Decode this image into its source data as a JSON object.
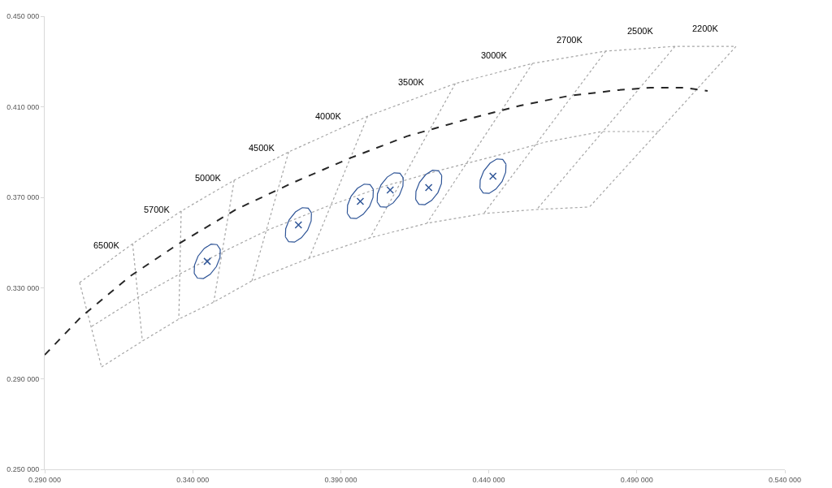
{
  "chart_data": {
    "type": "line",
    "xlim": [
      0.29,
      0.54
    ],
    "ylim": [
      0.25,
      0.45
    ],
    "xticks": [
      {
        "value": 0.29,
        "label": "0.290 000"
      },
      {
        "value": 0.34,
        "label": "0.340 000"
      },
      {
        "value": 0.39,
        "label": "0.390 000"
      },
      {
        "value": 0.44,
        "label": "0.440 000"
      },
      {
        "value": 0.49,
        "label": "0.490 000"
      },
      {
        "value": 0.54,
        "label": "0.540 000"
      }
    ],
    "yticks": [
      {
        "value": 0.25,
        "label": "0.250 000"
      },
      {
        "value": 0.29,
        "label": "0.290 000"
      },
      {
        "value": 0.33,
        "label": "0.330 000"
      },
      {
        "value": 0.37,
        "label": "0.370 000"
      },
      {
        "value": 0.41,
        "label": "0.410 000"
      },
      {
        "value": 0.45,
        "label": "0.450 000"
      }
    ],
    "series": [
      {
        "color": "#a6a6a6",
        "line_style": "dotted",
        "marker": "none",
        "x": [
          0.3018,
          0.3197,
          0.3361,
          0.354,
          0.3724,
          0.3991,
          0.4287,
          0.4548,
          0.4795,
          0.5029,
          0.5235
        ],
        "values": [
          0.3324,
          0.3496,
          0.364,
          0.3776,
          0.3901,
          0.4059,
          0.4203,
          0.4292,
          0.4346,
          0.4367,
          0.4367
        ]
      },
      {
        "color": "#a6a6a6",
        "line_style": "dotted",
        "marker": "none",
        "x": [
          0.3059,
          0.3216,
          0.3353,
          0.3491,
          0.3655,
          0.3848,
          0.404,
          0.4232,
          0.4425,
          0.4589,
          0.4782,
          0.4974
        ],
        "values": [
          0.3131,
          0.326,
          0.336,
          0.3453,
          0.3557,
          0.3658,
          0.3747,
          0.3819,
          0.3884,
          0.3944,
          0.3991,
          0.3991
        ]
      },
      {
        "color": "#a6a6a6",
        "line_style": "dotted",
        "marker": "none",
        "x": [
          0.3092,
          0.323,
          0.3353,
          0.3471,
          0.36,
          0.3793,
          0.3999,
          0.4191,
          0.4383,
          0.4562,
          0.474
        ],
        "values": [
          0.2952,
          0.3066,
          0.3163,
          0.3238,
          0.3332,
          0.3432,
          0.3522,
          0.3586,
          0.3629,
          0.3647,
          0.3658
        ]
      },
      {
        "color": "#a6a6a6",
        "line_style": "dotted",
        "marker": "none",
        "x": [
          0.3018,
          0.3092
        ],
        "values": [
          0.3324,
          0.2952
        ]
      },
      {
        "color": "#a6a6a6",
        "line_style": "dotted",
        "marker": "none",
        "x": [
          0.3197,
          0.323
        ],
        "values": [
          0.3496,
          0.3066
        ]
      },
      {
        "color": "#a6a6a6",
        "line_style": "dotted",
        "marker": "none",
        "x": [
          0.3361,
          0.3353
        ],
        "values": [
          0.364,
          0.3163
        ]
      },
      {
        "color": "#a6a6a6",
        "line_style": "dotted",
        "marker": "none",
        "x": [
          0.354,
          0.3471
        ],
        "values": [
          0.3776,
          0.3238
        ]
      },
      {
        "color": "#a6a6a6",
        "line_style": "dotted",
        "marker": "none",
        "x": [
          0.3724,
          0.36
        ],
        "values": [
          0.3901,
          0.3332
        ]
      },
      {
        "color": "#a6a6a6",
        "line_style": "dotted",
        "marker": "none",
        "x": [
          0.3991,
          0.3793
        ],
        "values": [
          0.4059,
          0.3432
        ]
      },
      {
        "color": "#a6a6a6",
        "line_style": "dotted",
        "marker": "none",
        "x": [
          0.4287,
          0.3999
        ],
        "values": [
          0.4203,
          0.3522
        ]
      },
      {
        "color": "#a6a6a6",
        "line_style": "dotted",
        "marker": "none",
        "x": [
          0.4548,
          0.4191
        ],
        "values": [
          0.4292,
          0.3586
        ]
      },
      {
        "color": "#a6a6a6",
        "line_style": "dotted",
        "marker": "none",
        "x": [
          0.4795,
          0.4383
        ],
        "values": [
          0.4346,
          0.3629
        ]
      },
      {
        "color": "#a6a6a6",
        "line_style": "dotted",
        "marker": "none",
        "x": [
          0.5029,
          0.4562
        ],
        "values": [
          0.4367,
          0.3647
        ]
      },
      {
        "color": "#a6a6a6",
        "line_style": "dotted",
        "marker": "none",
        "x": [
          0.5235,
          0.474
        ],
        "values": [
          0.4367,
          0.3658
        ]
      },
      {
        "color": "#262626",
        "line_style": "dashed",
        "marker": "none",
        "x": [
          0.29,
          0.3024,
          0.3189,
          0.3353,
          0.3546,
          0.3738,
          0.393,
          0.4123,
          0.4315,
          0.4507,
          0.4672,
          0.4837,
          0.4947,
          0.5057,
          0.5139
        ],
        "values": [
          0.3005,
          0.3174,
          0.3353,
          0.3496,
          0.3647,
          0.3765,
          0.3873,
          0.397,
          0.4041,
          0.4106,
          0.4149,
          0.4174,
          0.4185,
          0.4185,
          0.417
        ]
      },
      {
        "color": "#2f5597",
        "line_style": "solid",
        "marker": "none",
        "x": [
          0.3405,
          0.3406,
          0.3418,
          0.3439,
          0.3462,
          0.3482,
          0.3493
        ],
        "values": [
          0.3365,
          0.3401,
          0.3441,
          0.3475,
          0.3494,
          0.3492,
          0.3471
        ]
      },
      {
        "color": "#2f5597",
        "line_style": "solid",
        "marker": "none",
        "x": [
          0.3405,
          0.3416,
          0.3436,
          0.3459,
          0.348,
          0.3492,
          0.3493
        ],
        "values": [
          0.3365,
          0.3344,
          0.3342,
          0.3361,
          0.3395,
          0.3435,
          0.3471
        ]
      },
      {
        "color": "#2f5597",
        "line_style": "solid",
        "marker": "none",
        "x": [
          0.3713,
          0.3714,
          0.3726,
          0.3747,
          0.377,
          0.379,
          0.3801
        ],
        "values": [
          0.3526,
          0.3562,
          0.3602,
          0.3636,
          0.3655,
          0.3653,
          0.3632
        ]
      },
      {
        "color": "#2f5597",
        "line_style": "solid",
        "marker": "none",
        "x": [
          0.3713,
          0.3724,
          0.3744,
          0.3767,
          0.3788,
          0.38,
          0.3801
        ],
        "values": [
          0.3526,
          0.3505,
          0.3503,
          0.3522,
          0.3556,
          0.3596,
          0.3632
        ]
      },
      {
        "color": "#2f5597",
        "line_style": "solid",
        "marker": "none",
        "x": [
          0.3922,
          0.3923,
          0.3935,
          0.3956,
          0.3979,
          0.3999,
          0.401
        ],
        "values": [
          0.363,
          0.3666,
          0.3706,
          0.374,
          0.3759,
          0.3757,
          0.3736
        ]
      },
      {
        "color": "#2f5597",
        "line_style": "solid",
        "marker": "none",
        "x": [
          0.3922,
          0.3933,
          0.3953,
          0.3976,
          0.3997,
          0.4009,
          0.401
        ],
        "values": [
          0.363,
          0.3609,
          0.3607,
          0.3626,
          0.366,
          0.37,
          0.3736
        ]
      },
      {
        "color": "#2f5597",
        "line_style": "solid",
        "marker": "none",
        "x": [
          0.4023,
          0.4024,
          0.4036,
          0.4057,
          0.408,
          0.41,
          0.4111
        ],
        "values": [
          0.368,
          0.3716,
          0.3756,
          0.379,
          0.3809,
          0.3807,
          0.3786
        ]
      },
      {
        "color": "#2f5597",
        "line_style": "solid",
        "marker": "none",
        "x": [
          0.4023,
          0.4034,
          0.4054,
          0.4077,
          0.4098,
          0.411,
          0.4111
        ],
        "values": [
          0.368,
          0.3659,
          0.3657,
          0.3676,
          0.371,
          0.375,
          0.3786
        ]
      },
      {
        "color": "#2f5597",
        "line_style": "solid",
        "marker": "none",
        "x": [
          0.4153,
          0.4154,
          0.4166,
          0.4187,
          0.421,
          0.423,
          0.4241
        ],
        "values": [
          0.3691,
          0.3727,
          0.3767,
          0.3801,
          0.382,
          0.3818,
          0.3797
        ]
      },
      {
        "color": "#2f5597",
        "line_style": "solid",
        "marker": "none",
        "x": [
          0.4153,
          0.4164,
          0.4184,
          0.4207,
          0.4228,
          0.424,
          0.4241
        ],
        "values": [
          0.3691,
          0.367,
          0.3668,
          0.3687,
          0.3721,
          0.3761,
          0.3797
        ]
      },
      {
        "color": "#2f5597",
        "line_style": "solid",
        "marker": "none",
        "x": [
          0.437,
          0.4371,
          0.4383,
          0.4404,
          0.4427,
          0.4447,
          0.4458
        ],
        "values": [
          0.3741,
          0.3777,
          0.3817,
          0.3851,
          0.387,
          0.3868,
          0.3847
        ]
      },
      {
        "color": "#2f5597",
        "line_style": "solid",
        "marker": "none",
        "x": [
          0.437,
          0.4381,
          0.4401,
          0.4424,
          0.4445,
          0.4457,
          0.4458
        ],
        "values": [
          0.3741,
          0.372,
          0.3718,
          0.3737,
          0.3771,
          0.3811,
          0.3847
        ]
      },
      {
        "type": "scatter",
        "color": "#2f5597",
        "marker": "cross",
        "x": [
          0.3449,
          0.3757,
          0.3966,
          0.4067,
          0.4197,
          0.4414
        ],
        "values": [
          0.3418,
          0.3579,
          0.3683,
          0.3733,
          0.3744,
          0.3794
        ]
      }
    ],
    "annotations": [
      {
        "text": "6500K",
        "x": 0.3108,
        "y": 0.341
      },
      {
        "text": "5700K",
        "x": 0.3279,
        "y": 0.3568
      },
      {
        "text": "5000K",
        "x": 0.3451,
        "y": 0.3708
      },
      {
        "text": "4500K",
        "x": 0.3632,
        "y": 0.3839
      },
      {
        "text": "4000K",
        "x": 0.3858,
        "y": 0.398
      },
      {
        "text": "3500K",
        "x": 0.4139,
        "y": 0.4131
      },
      {
        "text": "3000K",
        "x": 0.4418,
        "y": 0.4248
      },
      {
        "text": "2700K",
        "x": 0.4672,
        "y": 0.4319
      },
      {
        "text": "2500K",
        "x": 0.4912,
        "y": 0.4357
      },
      {
        "text": "2200K",
        "x": 0.5132,
        "y": 0.4367
      }
    ]
  }
}
